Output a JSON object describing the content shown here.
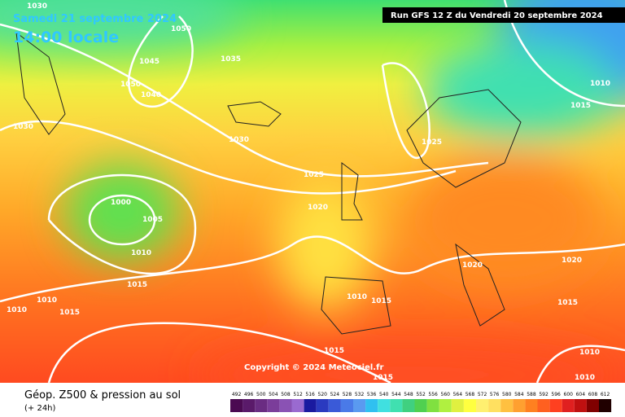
{
  "header": {
    "date": "Samedi 21 septembre 2024",
    "time": "14:00 locale",
    "run": "Run GFS 12 Z du Vendredi 20 septembre 2024"
  },
  "map": {
    "isobar_labels": [
      1030,
      1050,
      1045,
      1035,
      1050,
      1040,
      1030,
      1030,
      1025,
      1025,
      1020,
      1000,
      1005,
      1010,
      1015,
      1010,
      1010,
      1015,
      1010,
      1015,
      1020,
      1020,
      1015,
      1010,
      1015,
      1015,
      1015,
      1010,
      1010
    ],
    "copyright": "Copyright © 2024 Meteociel.fr"
  },
  "legend": {
    "title": "Géop. Z500 & pression au sol",
    "subtitle": "(+ 24h)",
    "scale": [
      {
        "value": 492,
        "color": "#4b0a52"
      },
      {
        "value": 496,
        "color": "#5a1a6a"
      },
      {
        "value": 500,
        "color": "#6a2c82"
      },
      {
        "value": 504,
        "color": "#7b3d9a"
      },
      {
        "value": 508,
        "color": "#8a52b4"
      },
      {
        "value": 512,
        "color": "#9a6ad0"
      },
      {
        "value": 516,
        "color": "#1a1aa0"
      },
      {
        "value": 520,
        "color": "#2a3ac0"
      },
      {
        "value": 524,
        "color": "#3a5ad8"
      },
      {
        "value": 528,
        "color": "#4a7ae8"
      },
      {
        "value": 532,
        "color": "#5a9af0"
      },
      {
        "value": 536,
        "color": "#30c0f0"
      },
      {
        "value": 540,
        "color": "#40e0e0"
      },
      {
        "value": 544,
        "color": "#40e0b0"
      },
      {
        "value": 548,
        "color": "#40d080"
      },
      {
        "value": 552,
        "color": "#50d050"
      },
      {
        "value": 556,
        "color": "#80e040"
      },
      {
        "value": 560,
        "color": "#b0f040"
      },
      {
        "value": 564,
        "color": "#e0f040"
      },
      {
        "value": 568,
        "color": "#ffff40"
      },
      {
        "value": 572,
        "color": "#fff070"
      },
      {
        "value": 576,
        "color": "#ffe060"
      },
      {
        "value": 580,
        "color": "#ffc040"
      },
      {
        "value": 584,
        "color": "#ffa030"
      },
      {
        "value": 588,
        "color": "#ff8020"
      },
      {
        "value": 592,
        "color": "#ff6020"
      },
      {
        "value": 596,
        "color": "#ff4020"
      },
      {
        "value": 600,
        "color": "#e02020"
      },
      {
        "value": 604,
        "color": "#c01010"
      },
      {
        "value": 608,
        "color": "#800000"
      },
      {
        "value": 612,
        "color": "#200000"
      }
    ]
  }
}
